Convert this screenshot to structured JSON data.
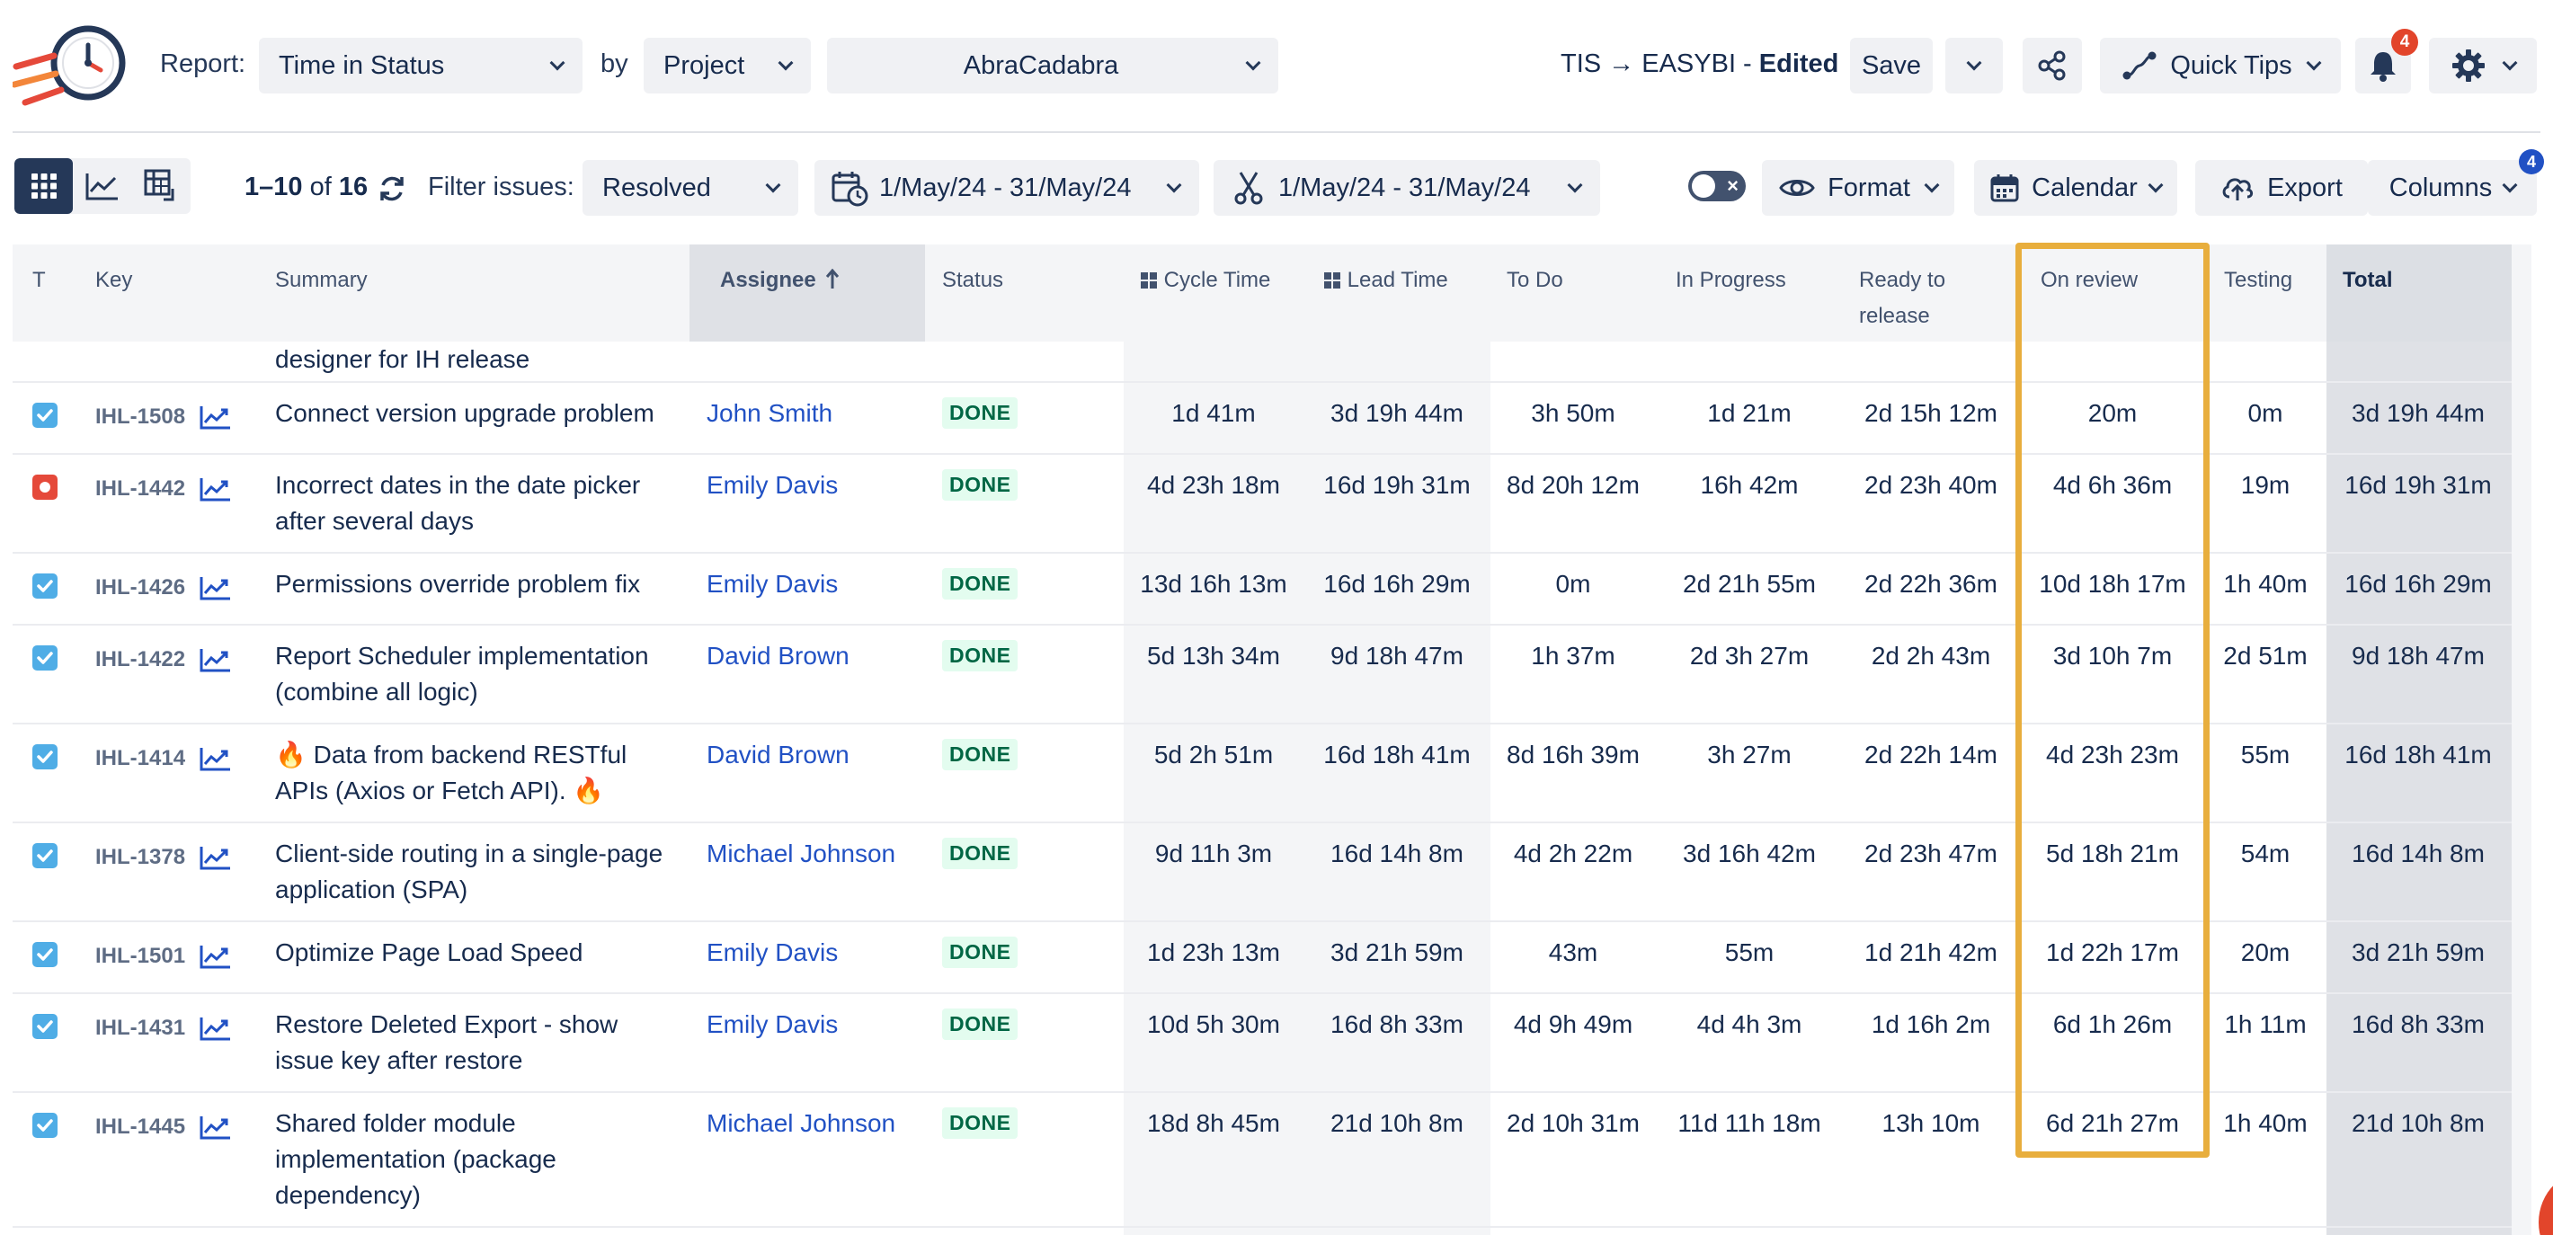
{
  "header": {
    "report_label": "Report:",
    "report_value": "Time in Status",
    "by_label": "by",
    "group_value": "Project",
    "project_value": "AbraCadabra",
    "config_name_prefix": "TIS → EASYBI - ",
    "config_state": "Edited",
    "save_label": "Save",
    "quick_tips_label": "Quick Tips",
    "notification_count": "4"
  },
  "toolbar": {
    "pagination_range": "1–10",
    "pagination_of": " of ",
    "pagination_total": "16",
    "filter_label": "Filter issues:",
    "filter_value": "Resolved",
    "date_range_1": "1/May/24 - 31/May/24",
    "date_range_2": "1/May/24 - 31/May/24",
    "format_label": "Format",
    "calendar_label": "Calendar",
    "export_label": "Export",
    "columns_label": "Columns",
    "columns_count": "4"
  },
  "colors": {
    "accent": "#2151c4",
    "highlight": "#e8ae3d",
    "done_bg": "#e3fcef",
    "done_fg": "#006644",
    "notification": "#e2452b"
  },
  "table": {
    "headers": {
      "type": "T",
      "key": "Key",
      "summary": "Summary",
      "assignee": "Assignee",
      "status": "Status",
      "cycle": "Cycle Time",
      "lead": "Lead Time",
      "todo": "To Do",
      "inprogress": "In Progress",
      "ready": "Ready to release",
      "review": "On review",
      "testing": "Testing",
      "total": "Total"
    },
    "partial_row_summary": "designer for IH release",
    "rows": [
      {
        "type": "task",
        "key": "IHL-1508",
        "summary": "Connect version upgrade problem",
        "assignee": "John Smith",
        "status": "DONE",
        "cycle": "1d 41m",
        "lead": "3d 19h 44m",
        "todo": "3h 50m",
        "inprogress": "1d 21m",
        "ready": "2d 15h 12m",
        "review": "20m",
        "testing": "0m",
        "total": "3d 19h 44m"
      },
      {
        "type": "bug",
        "key": "IHL-1442",
        "summary": "Incorrect dates in the date picker after several days",
        "assignee": "Emily Davis",
        "status": "DONE",
        "cycle": "4d 23h 18m",
        "lead": "16d 19h 31m",
        "todo": "8d 20h 12m",
        "inprogress": "16h 42m",
        "ready": "2d 23h 40m",
        "review": "4d 6h 36m",
        "testing": "19m",
        "total": "16d 19h 31m"
      },
      {
        "type": "task",
        "key": "IHL-1426",
        "summary": "Permissions override problem fix",
        "assignee": "Emily Davis",
        "status": "DONE",
        "cycle": "13d 16h 13m",
        "lead": "16d 16h 29m",
        "todo": "0m",
        "inprogress": "2d 21h 55m",
        "ready": "2d 22h 36m",
        "review": "10d 18h 17m",
        "testing": "1h 40m",
        "total": "16d 16h 29m"
      },
      {
        "type": "task",
        "key": "IHL-1422",
        "summary": "Report Scheduler implementation (combine all logic)",
        "assignee": "David Brown",
        "status": "DONE",
        "cycle": "5d 13h 34m",
        "lead": "9d 18h 47m",
        "todo": "1h 37m",
        "inprogress": "2d 3h 27m",
        "ready": "2d 2h 43m",
        "review": "3d 10h 7m",
        "testing": "2d 51m",
        "total": "9d 18h 47m"
      },
      {
        "type": "task",
        "key": "IHL-1414",
        "summary": "🔥 Data from backend RESTful APIs (Axios or Fetch API). 🔥",
        "assignee": "David Brown",
        "status": "DONE",
        "cycle": "5d 2h 51m",
        "lead": "16d 18h 41m",
        "todo": "8d 16h 39m",
        "inprogress": "3h 27m",
        "ready": "2d 22h 14m",
        "review": "4d 23h 23m",
        "testing": "55m",
        "total": "16d 18h 41m"
      },
      {
        "type": "task",
        "key": "IHL-1378",
        "summary": "Client-side routing in a single-page application (SPA)",
        "assignee": "Michael Johnson",
        "status": "DONE",
        "cycle": "9d 11h 3m",
        "lead": "16d 14h 8m",
        "todo": "4d 2h 22m",
        "inprogress": "3d 16h 42m",
        "ready": "2d 23h 47m",
        "review": "5d 18h 21m",
        "testing": "54m",
        "total": "16d 14h 8m"
      },
      {
        "type": "task",
        "key": "IHL-1501",
        "summary": "Optimize Page Load Speed",
        "assignee": "Emily Davis",
        "status": "DONE",
        "cycle": "1d 23h 13m",
        "lead": "3d 21h 59m",
        "todo": "43m",
        "inprogress": "55m",
        "ready": "1d 21h 42m",
        "review": "1d 22h 17m",
        "testing": "20m",
        "total": "3d 21h 59m"
      },
      {
        "type": "task",
        "key": "IHL-1431",
        "summary": "Restore Deleted Export - show issue key after restore",
        "assignee": "Emily Davis",
        "status": "DONE",
        "cycle": "10d 5h 30m",
        "lead": "16d 8h 33m",
        "todo": "4d 9h 49m",
        "inprogress": "4d 4h 3m",
        "ready": "1d 16h 2m",
        "review": "6d 1h 26m",
        "testing": "1h 11m",
        "total": "16d 8h 33m"
      },
      {
        "type": "task",
        "key": "IHL-1445",
        "summary": "Shared folder module implementation (package dependency)",
        "assignee": "Michael Johnson",
        "status": "DONE",
        "cycle": "18d 8h 45m",
        "lead": "21d 10h 8m",
        "todo": "2d 10h 31m",
        "inprogress": "11d 11h 18m",
        "ready": "13h 10m",
        "review": "6d 21h 27m",
        "testing": "1h 40m",
        "total": "21d 10h 8m"
      }
    ]
  }
}
